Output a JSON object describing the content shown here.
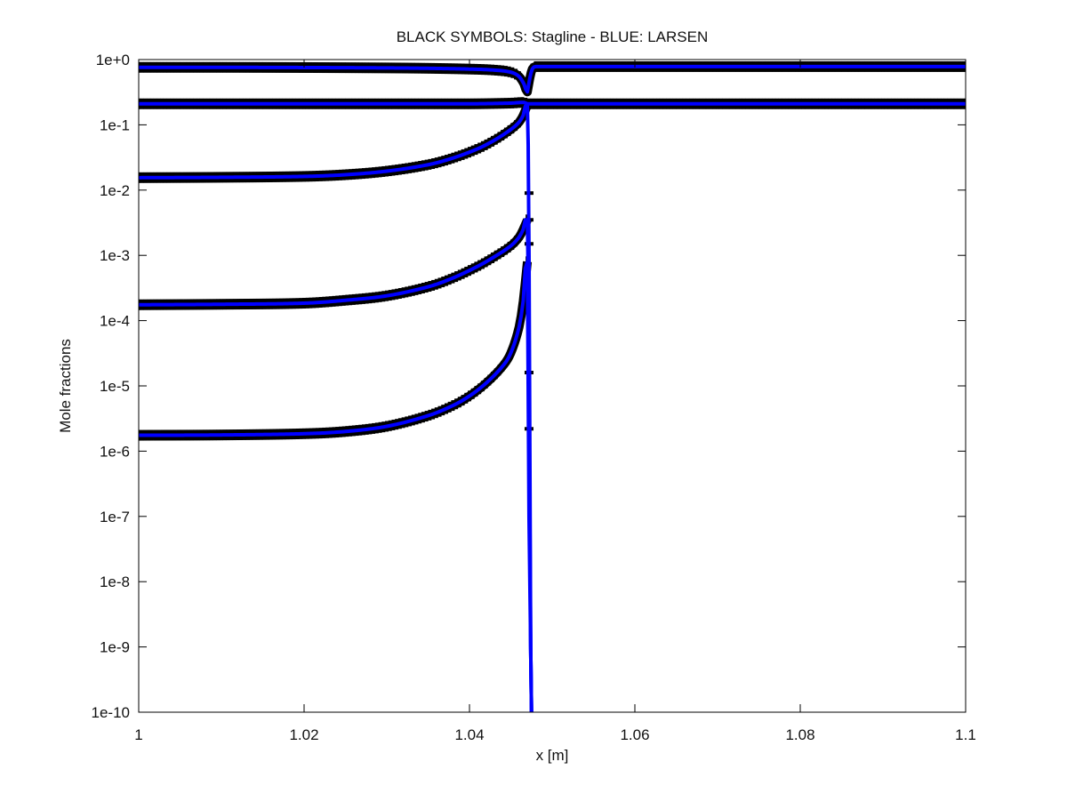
{
  "chart_data": {
    "type": "line",
    "title": "BLACK SYMBOLS: Stagline - BLUE: LARSEN",
    "xlabel": "x [m]",
    "ylabel": "Mole fractions",
    "xlim": [
      1.0,
      1.1
    ],
    "ylim": [
      1e-10,
      1.0
    ],
    "yscale": "log",
    "grid": false,
    "xticks": [
      1.0,
      1.02,
      1.04,
      1.06,
      1.08,
      1.1
    ],
    "xtick_labels": [
      "1",
      "1.02",
      "1.04",
      "1.06",
      "1.08",
      "1.1"
    ],
    "yticks": [
      1e-10,
      1e-09,
      1e-08,
      1e-07,
      1e-06,
      1e-05,
      0.0001,
      0.001,
      0.01,
      0.1,
      1
    ],
    "ytick_labels": [
      "1e-10",
      "1e-9",
      "1e-8",
      "1e-7",
      "1e-6",
      "1e-5",
      "1e-4",
      "1e-3",
      "1e-2",
      "1e-1",
      "1e+0"
    ],
    "shock_x": 1.0472,
    "colors": {
      "stagline": "#000000",
      "larsen": "#0000ff",
      "axes": "#000000"
    },
    "series": [
      {
        "method": "Stagline",
        "style": "markers",
        "x": [
          1.0,
          1.01,
          1.02,
          1.03,
          1.035,
          1.04,
          1.043,
          1.045,
          1.046,
          1.0466,
          1.047,
          1.0473,
          1.0476,
          1.048,
          1.05,
          1.06,
          1.08,
          1.1
        ],
        "y": [
          0.76,
          0.76,
          0.755,
          0.745,
          0.735,
          0.715,
          0.69,
          0.64,
          0.55,
          0.42,
          0.32,
          0.52,
          0.72,
          0.78,
          0.78,
          0.78,
          0.78,
          0.78
        ]
      },
      {
        "method": "Stagline",
        "style": "markers",
        "x": [
          1.0,
          1.02,
          1.04,
          1.045,
          1.0466,
          1.047,
          1.048,
          1.06,
          1.08,
          1.1
        ],
        "y": [
          0.21,
          0.21,
          0.21,
          0.215,
          0.22,
          0.21,
          0.21,
          0.21,
          0.21,
          0.21
        ]
      },
      {
        "method": "Stagline",
        "style": "markers",
        "x": [
          1.0,
          1.01,
          1.02,
          1.025,
          1.03,
          1.035,
          1.038,
          1.041,
          1.043,
          1.045,
          1.046,
          1.0465,
          1.047
        ],
        "y": [
          0.0155,
          0.0157,
          0.0162,
          0.0172,
          0.0195,
          0.0245,
          0.031,
          0.043,
          0.058,
          0.085,
          0.11,
          0.14,
          0.2
        ]
      },
      {
        "method": "Stagline",
        "style": "markers",
        "x": [
          1.0,
          1.01,
          1.02,
          1.025,
          1.03,
          1.035,
          1.038,
          1.041,
          1.043,
          1.045,
          1.046,
          1.0465,
          1.047
        ],
        "y": [
          0.000175,
          0.000178,
          0.000185,
          0.000205,
          0.00024,
          0.00033,
          0.00045,
          0.00068,
          0.00095,
          0.0014,
          0.0019,
          0.0025,
          0.0035
        ]
      },
      {
        "method": "Stagline",
        "style": "markers",
        "x": [
          1.0,
          1.01,
          1.02,
          1.025,
          1.03,
          1.035,
          1.038,
          1.04,
          1.042,
          1.044,
          1.045,
          1.046,
          1.0465,
          1.047
        ],
        "y": [
          1.75e-06,
          1.77e-06,
          1.85e-06,
          2e-06,
          2.4e-06,
          3.5e-06,
          5e-06,
          7e-06,
          1.1e-05,
          2e-05,
          3.2e-05,
          8e-05,
          0.0002,
          0.0008
        ]
      },
      {
        "method": "LARSEN",
        "style": "line",
        "x": [
          1.0,
          1.01,
          1.02,
          1.03,
          1.035,
          1.04,
          1.043,
          1.045,
          1.046,
          1.0466,
          1.047,
          1.0473,
          1.0476,
          1.048,
          1.05,
          1.06,
          1.08,
          1.1
        ],
        "y": [
          0.76,
          0.76,
          0.755,
          0.745,
          0.735,
          0.715,
          0.69,
          0.64,
          0.55,
          0.42,
          0.32,
          0.52,
          0.72,
          0.78,
          0.78,
          0.78,
          0.78,
          0.78
        ]
      },
      {
        "method": "LARSEN",
        "style": "line",
        "x": [
          1.0,
          1.02,
          1.04,
          1.045,
          1.0466,
          1.047,
          1.048,
          1.06,
          1.08,
          1.1
        ],
        "y": [
          0.21,
          0.21,
          0.21,
          0.215,
          0.22,
          0.21,
          0.21,
          0.21,
          0.21,
          0.21
        ]
      },
      {
        "method": "LARSEN",
        "style": "line",
        "x": [
          1.0,
          1.01,
          1.02,
          1.025,
          1.03,
          1.035,
          1.038,
          1.041,
          1.043,
          1.045,
          1.046,
          1.0465,
          1.047,
          1.0471,
          1.0472,
          1.0473,
          1.0474,
          1.0475
        ],
        "y": [
          0.0155,
          0.0157,
          0.0162,
          0.0172,
          0.0195,
          0.0245,
          0.031,
          0.043,
          0.058,
          0.085,
          0.11,
          0.14,
          0.2,
          0.05,
          0.001,
          1e-06,
          1e-09,
          1e-10
        ]
      },
      {
        "method": "LARSEN",
        "style": "line",
        "x": [
          1.0,
          1.01,
          1.02,
          1.025,
          1.03,
          1.035,
          1.038,
          1.041,
          1.043,
          1.045,
          1.046,
          1.0465,
          1.047,
          1.0471,
          1.0472,
          1.0473,
          1.0474,
          1.0475
        ],
        "y": [
          0.000175,
          0.000178,
          0.000185,
          0.000205,
          0.00024,
          0.00033,
          0.00045,
          0.00068,
          0.00095,
          0.0014,
          0.0019,
          0.0025,
          0.0035,
          0.0005,
          1e-05,
          1e-07,
          1e-09,
          1e-10
        ]
      },
      {
        "method": "LARSEN",
        "style": "line",
        "x": [
          1.0,
          1.01,
          1.02,
          1.025,
          1.03,
          1.035,
          1.038,
          1.04,
          1.042,
          1.044,
          1.045,
          1.046,
          1.0465,
          1.047,
          1.0471,
          1.0472,
          1.0473,
          1.0474,
          1.0475
        ],
        "y": [
          1.75e-06,
          1.77e-06,
          1.85e-06,
          2e-06,
          2.4e-06,
          3.5e-06,
          5e-06,
          7e-06,
          1.1e-05,
          2e-05,
          3.2e-05,
          8e-05,
          0.0002,
          0.0008,
          1e-05,
          1e-07,
          1e-08,
          1e-09,
          1e-10
        ]
      }
    ],
    "post_shock_trace_points": [
      {
        "x": 1.0472,
        "y": 0.009
      },
      {
        "x": 1.0472,
        "y": 0.0035
      },
      {
        "x": 1.0472,
        "y": 0.0015
      },
      {
        "x": 1.0472,
        "y": 1.6e-05
      },
      {
        "x": 1.0472,
        "y": 2.2e-06
      }
    ]
  }
}
